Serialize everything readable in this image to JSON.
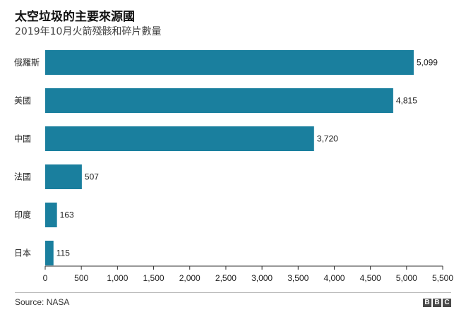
{
  "header": {
    "title": "太空垃圾的主要來源國",
    "subtitle": "2019年10月火箭殘骸和碎片數量"
  },
  "footer": {
    "source": "Source: NASA",
    "logo_letters": [
      "B",
      "B",
      "C"
    ]
  },
  "colors": {
    "bar": "#1a7f9e",
    "axis": "#333333"
  },
  "chart_data": {
    "type": "bar",
    "orientation": "horizontal",
    "categories": [
      "俄羅斯",
      "美國",
      "中國",
      "法國",
      "印度",
      "日本"
    ],
    "values": [
      5099,
      4815,
      3720,
      507,
      163,
      115
    ],
    "value_labels": [
      "5,099",
      "4,815",
      "3,720",
      "507",
      "163",
      "115"
    ],
    "xlim": [
      0,
      5500
    ],
    "xticks": [
      0,
      500,
      1000,
      1500,
      2000,
      2500,
      3000,
      3500,
      4000,
      4500,
      5000,
      5500
    ],
    "xtick_labels": [
      "0",
      "500",
      "1,000",
      "1,500",
      "2,000",
      "2,500",
      "3,000",
      "3,500",
      "4,000",
      "4,500",
      "5,000",
      "5,500"
    ],
    "grid": false
  }
}
